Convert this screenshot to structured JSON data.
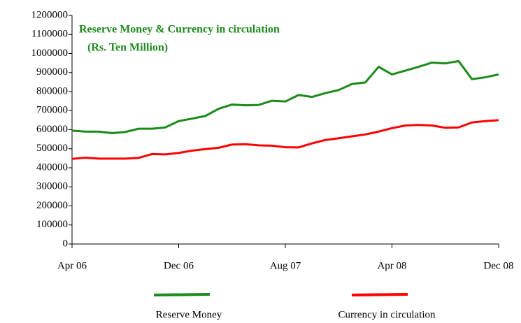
{
  "chart_data": {
    "type": "line",
    "title": "Reserve Money & Currency in circulation",
    "subtitle": "(Rs. Ten Million)",
    "title_color": "#1f8a1f",
    "categories": [
      "Apr 06",
      null,
      null,
      null,
      null,
      null,
      null,
      null,
      "Dec 06",
      null,
      null,
      null,
      null,
      null,
      null,
      null,
      "Aug 07",
      null,
      null,
      null,
      null,
      null,
      null,
      null,
      "Apr 08",
      null,
      null,
      null,
      null,
      null,
      null,
      null,
      "Dec 08"
    ],
    "series": [
      {
        "name": "Reserve Money",
        "color": "#1a8a1a",
        "values": [
          595000,
          590000,
          590000,
          582000,
          588000,
          605000,
          605000,
          612000,
          645000,
          658000,
          672000,
          710000,
          732000,
          728000,
          730000,
          752000,
          748000,
          782000,
          772000,
          792000,
          808000,
          840000,
          848000,
          930000,
          890000,
          910000,
          930000,
          952000,
          948000,
          960000,
          865000,
          875000,
          890000
        ]
      },
      {
        "name": "Currency in circulation",
        "color": "#ff0000",
        "values": [
          447000,
          453000,
          448000,
          448000,
          448000,
          452000,
          472000,
          470000,
          478000,
          490000,
          498000,
          505000,
          522000,
          524000,
          518000,
          516000,
          508000,
          507000,
          528000,
          546000,
          555000,
          565000,
          575000,
          590000,
          608000,
          622000,
          625000,
          622000,
          610000,
          612000,
          638000,
          645000,
          650000
        ]
      }
    ],
    "ylim": [
      0,
      1200000
    ],
    "yticks": [
      0,
      100000,
      200000,
      300000,
      400000,
      500000,
      600000,
      700000,
      800000,
      900000,
      1000000,
      1100000,
      1200000
    ],
    "grid": false,
    "legend": "bottom"
  }
}
